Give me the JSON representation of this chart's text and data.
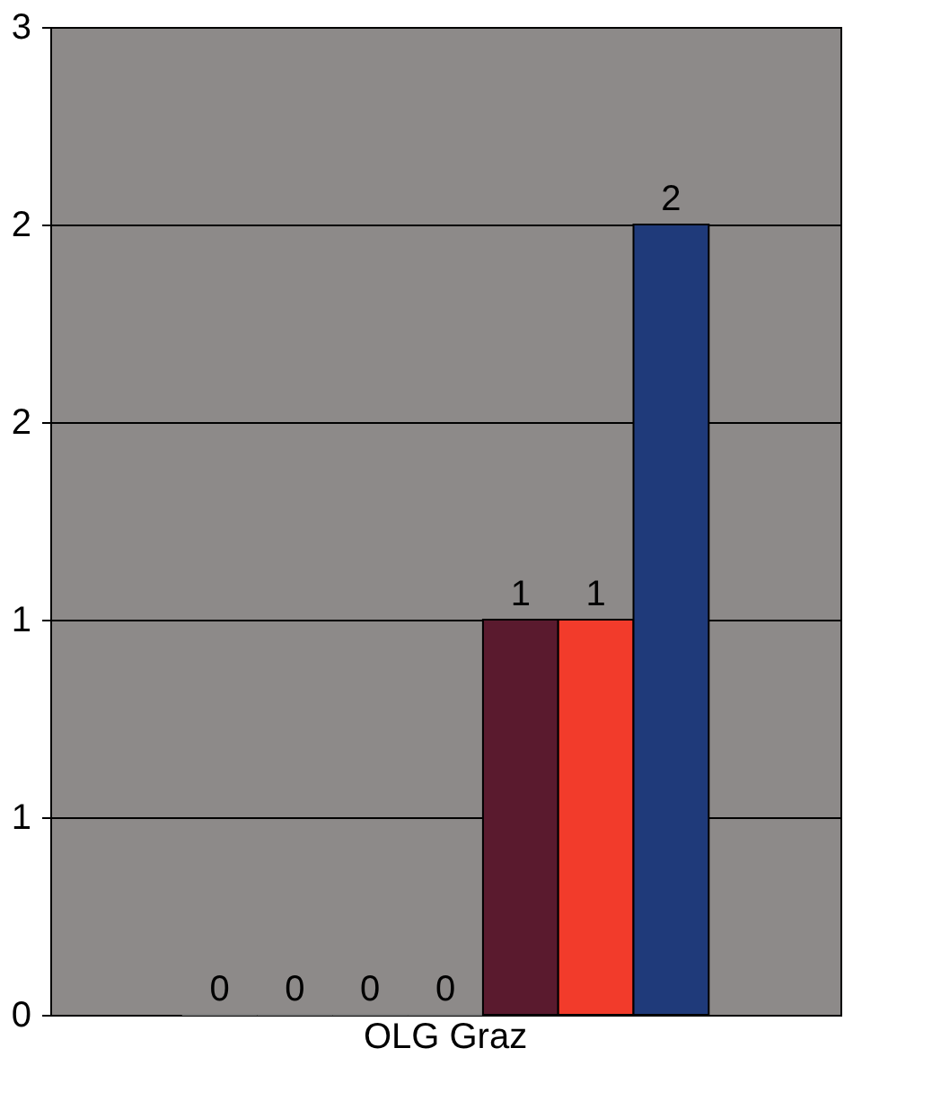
{
  "chart_data": {
    "type": "bar",
    "categories": [
      "OLG Graz"
    ],
    "series": [
      {
        "color": "#7f7f7f",
        "values": [
          0
        ]
      },
      {
        "color": "#7f7f7f",
        "values": [
          0
        ]
      },
      {
        "color": "#7f7f7f",
        "values": [
          0
        ]
      },
      {
        "color": "#7f7f7f",
        "values": [
          0
        ]
      },
      {
        "color": "#5a1a2e",
        "values": [
          1
        ]
      },
      {
        "color": "#f23b2b",
        "values": [
          1
        ]
      },
      {
        "color": "#1f3a7a",
        "values": [
          2
        ]
      }
    ],
    "ylim": [
      0,
      2.5
    ],
    "yticks": [
      0,
      {
        "value": 0.5,
        "label": "1"
      },
      1,
      {
        "value": 1.5,
        "label": "2"
      },
      2,
      {
        "value": 2.5,
        "label": "3"
      }
    ],
    "grid": "y",
    "data_labels": true,
    "legend": false
  }
}
